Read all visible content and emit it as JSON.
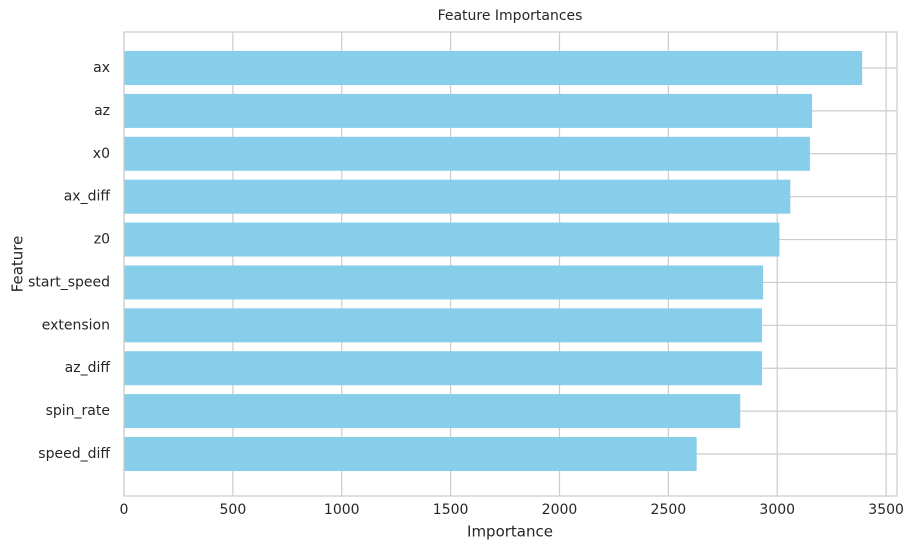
{
  "chart_data": {
    "type": "hbar",
    "title": "Feature Importances",
    "x_label": "Importance",
    "y_label": "Feature",
    "categories": [
      "ax",
      "az",
      "x0",
      "ax_diff",
      "z0",
      "start_speed",
      "extension",
      "az_diff",
      "spin_rate",
      "speed_diff"
    ],
    "values": [
      3390,
      3160,
      3150,
      3060,
      3010,
      2935,
      2930,
      2930,
      2830,
      2630
    ],
    "color": "#87ceeb",
    "xlim": [
      0,
      3550
    ],
    "xticks": [
      0,
      500,
      1000,
      1500,
      2000,
      2500,
      3000,
      3500
    ],
    "grid": true
  }
}
